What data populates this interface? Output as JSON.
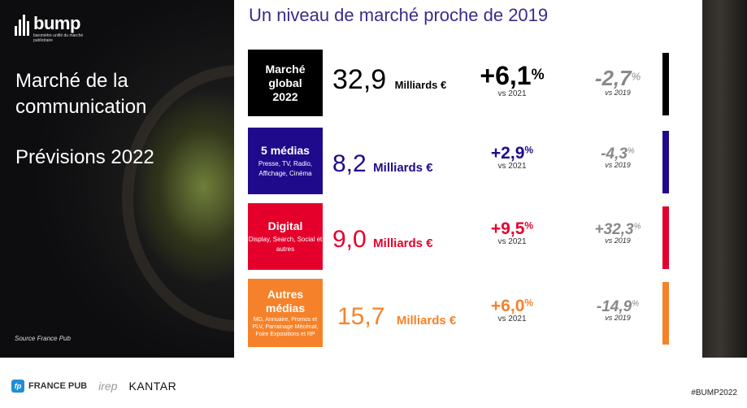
{
  "sidebar": {
    "logo": {
      "word": "bump",
      "subtitle": "baromètre unifié du marché publicitaire"
    },
    "title_line1": "Marché de la",
    "title_line2": "communication",
    "subtitle": "Prévisions 2022",
    "source": "Source France Pub"
  },
  "main": {
    "title": "Un niveau de marché proche de 2019",
    "rows": [
      {
        "box_title": [
          "Marché",
          "global",
          "2022"
        ],
        "box_detail": "",
        "value": "32,9",
        "unit": "Milliards €",
        "growth": "+6,1",
        "growth_vs": "vs 2021",
        "prev": "-2,7",
        "prev_vs": "vs 2019",
        "color": "#000000"
      },
      {
        "box_title": [
          "5 médias"
        ],
        "box_detail": "Presse, TV, Radio, Affichage, Cinéma",
        "value": "8,2",
        "unit": "Milliards €",
        "growth": "+2,9",
        "growth_vs": "vs 2021",
        "prev": "-4,3",
        "prev_vs": "vs 2019",
        "color": "#1f0a8c"
      },
      {
        "box_title": [
          "Digital"
        ],
        "box_detail": "Display, Search, Social et autres",
        "value": "9,0",
        "unit": "Milliards €",
        "growth": "+9,5",
        "growth_vs": "vs 2021",
        "prev": "+32,3",
        "prev_vs": "vs 2019",
        "color": "#e4002b"
      },
      {
        "box_title": [
          "Autres",
          "médias"
        ],
        "box_detail": "MD, Annuaire, Promos et PLV, Parrainage Mécénat, Foire Expositions et RP",
        "value": "15,7",
        "unit": "Milliards €",
        "growth": "+6,0",
        "growth_vs": "vs 2021",
        "prev": "-14,9",
        "prev_vs": "vs 2019",
        "color": "#f5822a"
      }
    ],
    "percent": "%"
  },
  "footer": {
    "francepub": "FRANCE PUB",
    "francepub_icon": "fp",
    "irep": "irep",
    "kantar": "KANTAR",
    "hashtag": "#BUMP2022"
  }
}
